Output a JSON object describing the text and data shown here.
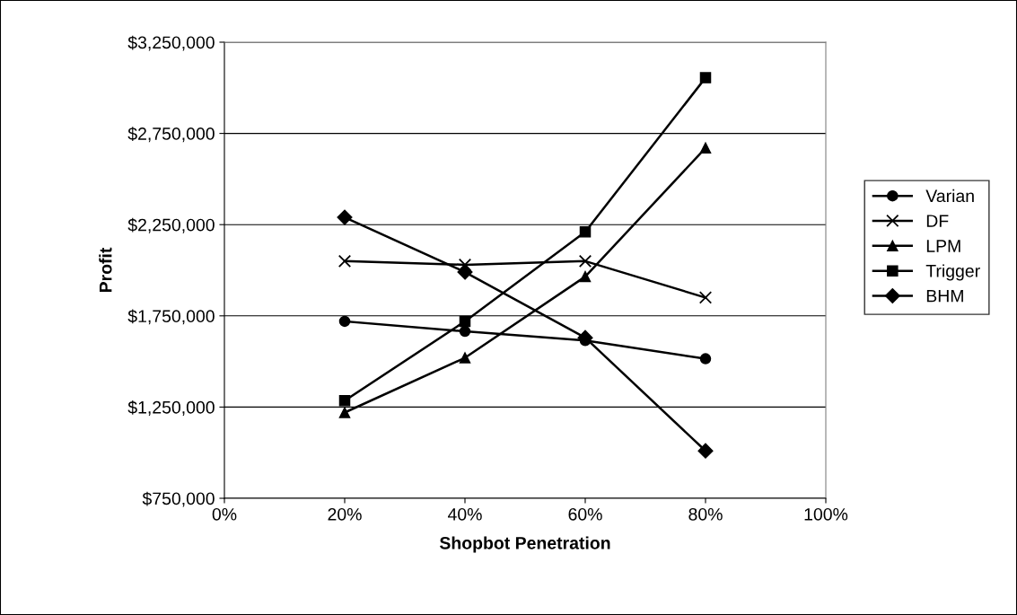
{
  "chart_data": {
    "type": "line",
    "xlabel": "Shopbot Penetration",
    "ylabel": "Profit",
    "x": [
      20,
      40,
      60,
      80
    ],
    "series": [
      {
        "name": "Varian",
        "color": "#000000",
        "marker": "circle",
        "values": [
          1720000,
          1665000,
          1615000,
          1515000
        ]
      },
      {
        "name": "DF",
        "color": "#000000",
        "marker": "cross",
        "values": [
          2050000,
          2030000,
          2050000,
          1850000
        ]
      },
      {
        "name": "LPM",
        "color": "#000000",
        "marker": "triangle",
        "values": [
          1220000,
          1520000,
          1965000,
          2670000
        ]
      },
      {
        "name": "Trigger",
        "color": "#000000",
        "marker": "square",
        "values": [
          1285000,
          1720000,
          2210000,
          3055000
        ]
      },
      {
        "name": "BHM",
        "color": "#000000",
        "marker": "diamond",
        "values": [
          2290000,
          1990000,
          1630000,
          1010000
        ]
      }
    ],
    "xlim": [
      0,
      100
    ],
    "xticks": [
      {
        "value": 0,
        "label": "0%"
      },
      {
        "value": 20,
        "label": "20%"
      },
      {
        "value": 40,
        "label": "40%"
      },
      {
        "value": 60,
        "label": "60%"
      },
      {
        "value": 80,
        "label": "80%"
      },
      {
        "value": 100,
        "label": "100%"
      }
    ],
    "ylim": [
      750000,
      3250000
    ],
    "yticks": [
      {
        "value": 750000,
        "label": "$750,000"
      },
      {
        "value": 1250000,
        "label": "$1,250,000"
      },
      {
        "value": 1750000,
        "label": "$1,750,000"
      },
      {
        "value": 2250000,
        "label": "$2,250,000"
      },
      {
        "value": 2750000,
        "label": "$2,750,000"
      },
      {
        "value": 3250000,
        "label": "$3,250,000"
      }
    ],
    "grid": "y",
    "legend": "right",
    "line_style": "solid"
  }
}
